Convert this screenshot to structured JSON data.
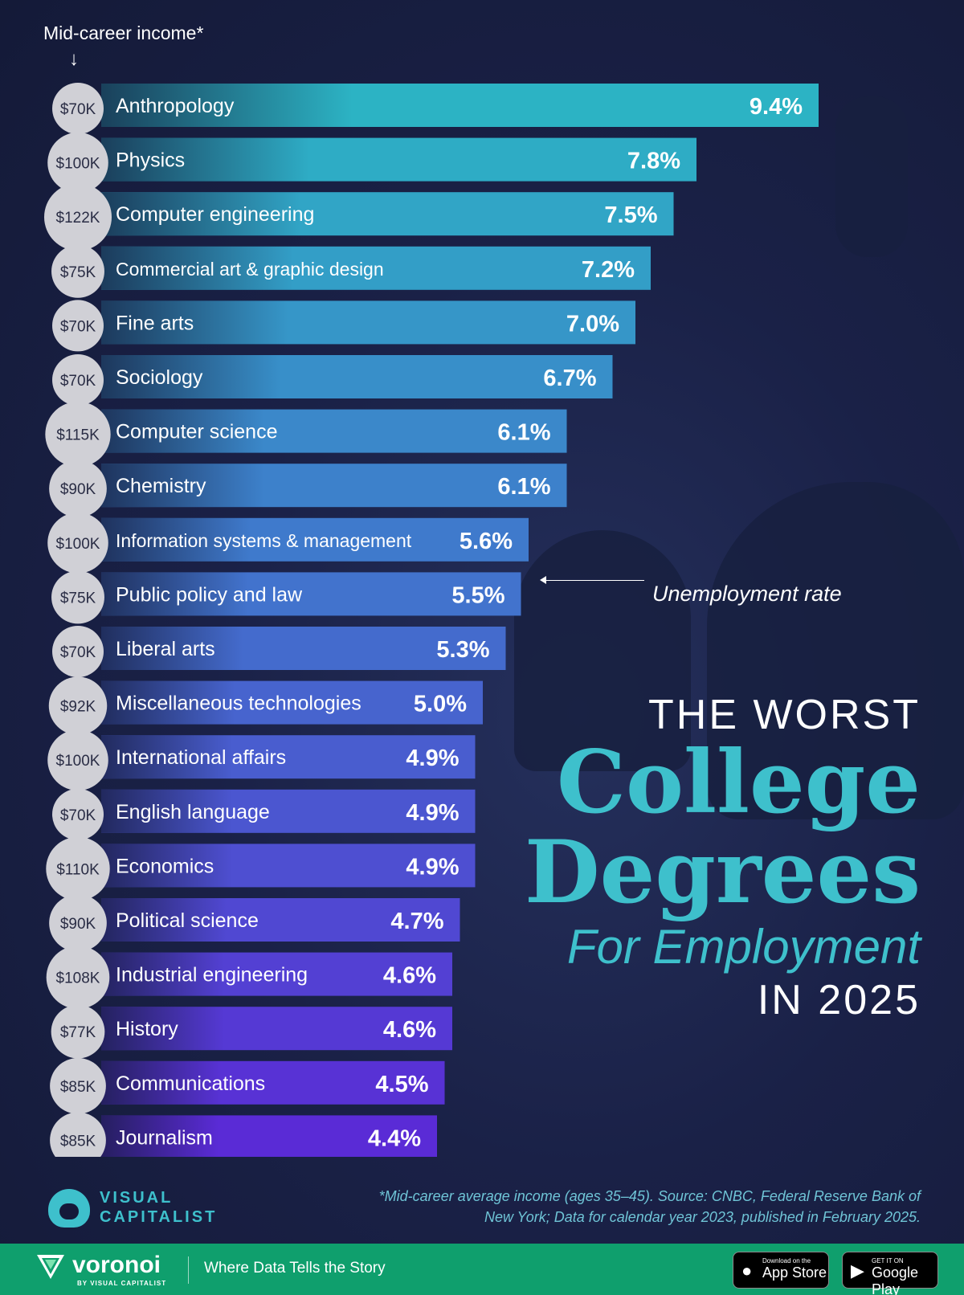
{
  "chart_header": {
    "income_label": "Mid-career income*",
    "annotation": "Unemployment rate"
  },
  "title": {
    "line1": "THE WORST",
    "line2": "College",
    "line3": "Degrees",
    "line4": "For Employment",
    "line5": "IN 2025"
  },
  "source": {
    "line1": "*Mid-career average income (ages 35–45). Source: CNBC, Federal Reserve Bank of",
    "line2": "New York; Data for calendar year 2023, published in February 2025."
  },
  "brand": {
    "logo_line1": "VISUAL",
    "logo_line2": "CAPITALIST",
    "voronoi": "voronoi",
    "voronoi_sub": "BY VISUAL CAPITALIST",
    "tagline": "Where Data Tells the Story"
  },
  "badges": {
    "app_store_small": "Download on the",
    "app_store": "App Store",
    "google_play_small": "GET IT ON",
    "google_play": "Google Play"
  },
  "colors": {
    "background": "#15193a",
    "bar_top": "#2cb3c4",
    "bar_bottom": "#5a2bd6",
    "accent_teal": "#3ec0cc",
    "income_circle": "#d0d0d6",
    "footer": "#0f9f6d"
  },
  "chart_data": {
    "type": "bar",
    "orientation": "horizontal",
    "ylabel": "Mid-career income*",
    "xlabel": "Unemployment rate",
    "categories": [
      "Anthropology",
      "Physics",
      "Computer engineering",
      "Commercial art & graphic design",
      "Fine arts",
      "Sociology",
      "Computer science",
      "Chemistry",
      "Information systems & management",
      "Public policy and law",
      "Liberal arts",
      "Miscellaneous technologies",
      "International affairs",
      "English language",
      "Economics",
      "Political science",
      "Industrial engineering",
      "History",
      "Communications",
      "Journalism"
    ],
    "values": [
      9.4,
      7.8,
      7.5,
      7.2,
      7.0,
      6.7,
      6.1,
      6.1,
      5.6,
      5.5,
      5.3,
      5.0,
      4.9,
      4.9,
      4.9,
      4.7,
      4.6,
      4.6,
      4.5,
      4.4
    ],
    "value_labels": [
      "9.4%",
      "7.8%",
      "7.5%",
      "7.2%",
      "7.0%",
      "6.7%",
      "6.1%",
      "6.1%",
      "5.6%",
      "5.5%",
      "5.3%",
      "5.0%",
      "4.9%",
      "4.9%",
      "4.9%",
      "4.7%",
      "4.6%",
      "4.6%",
      "4.5%",
      "4.4%"
    ],
    "income": [
      70,
      100,
      122,
      75,
      70,
      70,
      115,
      90,
      100,
      75,
      70,
      92,
      100,
      70,
      110,
      90,
      108,
      77,
      85,
      85
    ],
    "income_labels": [
      "$70K",
      "$100K",
      "$122K",
      "$75K",
      "$70K",
      "$70K",
      "$115K",
      "$90K",
      "$100K",
      "$75K",
      "$70K",
      "$92K",
      "$100K",
      "$70K",
      "$110K",
      "$90K",
      "$108K",
      "$77K",
      "$85K",
      "$85K"
    ]
  }
}
